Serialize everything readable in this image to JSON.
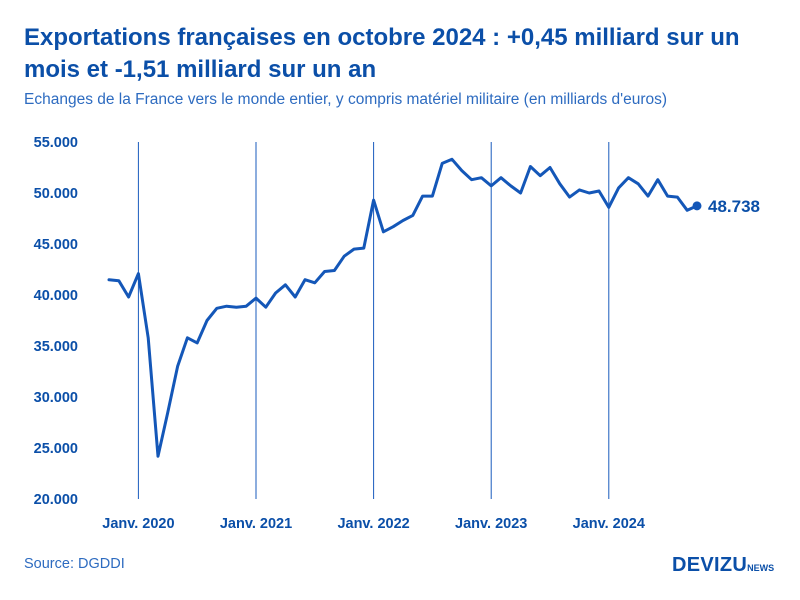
{
  "title": "Exportations françaises en octobre 2024 : +0,45 milliard sur un mois et -1,51 milliard sur un an",
  "subtitle": "Echanges de la France vers le monde entier, y compris matériel militaire (en milliards d'euros)",
  "source": "Source: DGDDI",
  "logo": {
    "main": "DEVIZU",
    "sub": "NEWS"
  },
  "colors": {
    "line": "#1457b8",
    "text": "#0b4fa8",
    "vertical_marker": "#1a5bbd"
  },
  "chart_data": {
    "type": "line",
    "title": "",
    "xlabel": "",
    "ylabel": "",
    "ylim": [
      20000,
      55000
    ],
    "y_ticks": [
      20000,
      25000,
      30000,
      35000,
      40000,
      45000,
      50000,
      55000
    ],
    "y_tick_labels": [
      "20.000",
      "25.000",
      "30.000",
      "35.000",
      "40.000",
      "45.000",
      "50.000",
      "55.000"
    ],
    "grid": false,
    "x_start": "2019-10",
    "x_end": "2024-10",
    "vertical_markers": [
      "2020-01",
      "2021-01",
      "2022-01",
      "2023-01",
      "2024-01"
    ],
    "x_tick_labels": [
      "Janv. 2020",
      "Janv. 2021",
      "Janv. 2022",
      "Janv. 2023",
      "Janv. 2024"
    ],
    "end_label": "48.738",
    "series": [
      {
        "x": [
          "2019-10",
          "2019-11",
          "2019-12",
          "2020-01",
          "2020-02",
          "2020-03",
          "2020-04",
          "2020-05",
          "2020-06",
          "2020-07",
          "2020-08",
          "2020-09",
          "2020-10",
          "2020-11",
          "2020-12",
          "2021-01",
          "2021-02",
          "2021-03",
          "2021-04",
          "2021-05",
          "2021-06",
          "2021-07",
          "2021-08",
          "2021-09",
          "2021-10",
          "2021-11",
          "2021-12",
          "2022-01",
          "2022-02",
          "2022-03",
          "2022-04",
          "2022-05",
          "2022-06",
          "2022-07",
          "2022-08",
          "2022-09",
          "2022-10",
          "2022-11",
          "2022-12",
          "2023-01",
          "2023-02",
          "2023-03",
          "2023-04",
          "2023-05",
          "2023-06",
          "2023-07",
          "2023-08",
          "2023-09",
          "2023-10",
          "2023-11",
          "2023-12",
          "2024-01",
          "2024-02",
          "2024-03",
          "2024-04",
          "2024-05",
          "2024-06",
          "2024-07",
          "2024-08",
          "2024-09",
          "2024-10"
        ],
        "values": [
          41500,
          41400,
          39800,
          42100,
          35800,
          24200,
          28500,
          33000,
          35800,
          35300,
          37500,
          38700,
          38900,
          38800,
          38900,
          39700,
          38800,
          40200,
          41000,
          39800,
          41500,
          41200,
          42300,
          42400,
          43800,
          44500,
          44600,
          49300,
          46200,
          46700,
          47300,
          47800,
          49700,
          49700,
          52900,
          53300,
          52200,
          51300,
          51500,
          50700,
          51500,
          50700,
          50000,
          52600,
          51700,
          52500,
          50900,
          49600,
          50300,
          50000,
          50200,
          48600,
          50500,
          51500,
          50900,
          49700,
          51300,
          49700,
          49600,
          48300,
          48738
        ]
      }
    ]
  }
}
